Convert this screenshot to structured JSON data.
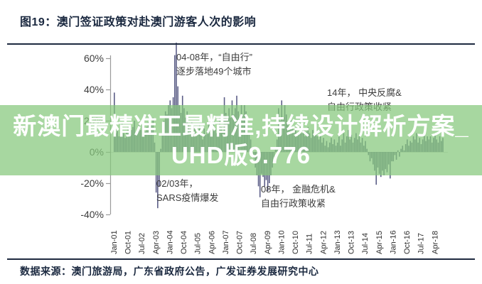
{
  "figure": {
    "title": "图19：澳门签证政策对赴澳门游客人次的影响",
    "source": "数据来源：澳门旅游局，广东省政府公告，广发证券发展研究中心"
  },
  "watermark": {
    "line1": "新澳门最精准正最精准,持续设计解析方案_",
    "line2": "UHD版9.776",
    "band_color": "rgba(133,200,123,0.72)",
    "text_color": "#ffffff"
  },
  "chart_data": {
    "type": "bar",
    "title": "澳门签证政策对赴澳门游客人次的影响",
    "xlabel": "",
    "ylabel": "",
    "unit": "%",
    "grid": false,
    "legend": "none",
    "bar_color": "#5c5e87",
    "axis_color": "#9a9a9a",
    "ylim": [
      -45,
      75
    ],
    "y_tick_values": [
      60,
      40,
      20,
      0,
      -20,
      -40
    ],
    "y_tick_labels": [
      "60%",
      "40%",
      "20%",
      "0%",
      "-20%",
      "-40%"
    ],
    "x_start_month": "Jan-01",
    "x_months_per_tick": 9,
    "x_tick_labels": [
      "Jan-01",
      "Oct-01",
      "Jul-02",
      "Apr-03",
      "Jan-04",
      "Oct-04",
      "Jul-05",
      "Apr-06",
      "Jan-07",
      "Oct-07",
      "Jul-08",
      "Apr-09",
      "Jan-10",
      "Oct-10",
      "Jul-11",
      "Apr-12",
      "Jan-13",
      "Oct-13",
      "Jul-14",
      "Apr-15",
      "Jan-16",
      "Oct-16",
      "Jul-17",
      "Apr-18"
    ],
    "values": [
      38,
      12,
      15,
      10,
      14,
      18,
      12,
      9,
      13,
      16,
      11,
      14,
      16,
      20,
      12,
      15,
      18,
      14,
      17,
      21,
      13,
      16,
      19,
      15,
      18,
      22,
      6,
      -26,
      -36,
      -22,
      2,
      12,
      20,
      26,
      24,
      30,
      33,
      28,
      35,
      62,
      70,
      42,
      30,
      25,
      36,
      28,
      22,
      26,
      18,
      14,
      20,
      12,
      16,
      10,
      14,
      18,
      12,
      8,
      15,
      11,
      14,
      18,
      12,
      16,
      20,
      15,
      12,
      17,
      22,
      16,
      13,
      35,
      25,
      20,
      28,
      22,
      33,
      24,
      28,
      36,
      26,
      22,
      30,
      24,
      30,
      26,
      18,
      12,
      8,
      2,
      -4,
      -10,
      -15,
      -22,
      -29,
      -14,
      -16,
      -22,
      -18,
      -25,
      -20,
      -15,
      -10,
      -5,
      2,
      8,
      28,
      20,
      33,
      22,
      30,
      24,
      18,
      14,
      20,
      16,
      12,
      15,
      10,
      13,
      16,
      12,
      14,
      10,
      13,
      16,
      12,
      9,
      14,
      11,
      13,
      10,
      8,
      12,
      6,
      9,
      4,
      7,
      3,
      6,
      9,
      5,
      8,
      4,
      6,
      10,
      4,
      8,
      12,
      6,
      10,
      14,
      8,
      11,
      6,
      9,
      12,
      8,
      10,
      6,
      9,
      4,
      7,
      2,
      -2,
      -6,
      -4,
      -8,
      -12,
      -21,
      -10,
      -14,
      -16,
      -12,
      -15,
      -11,
      -13,
      -8,
      -17,
      -6,
      -6,
      -2,
      -5,
      1,
      -3,
      2,
      4,
      1,
      5,
      8,
      4,
      7,
      6,
      10,
      8,
      12,
      6,
      9,
      5,
      8,
      11,
      7,
      10,
      8,
      10,
      6,
      9,
      12,
      8,
      6,
      10,
      7,
      9
    ],
    "annotations": [
      {
        "line1": "04-08年，“自由行”",
        "line2": "逐步落地49个城市"
      },
      {
        "line1": "14年， 中央反腐&",
        "line2": "自由行政策收紧"
      },
      {
        "line1": "02/03年，",
        "line2": "SARS疫情爆发"
      },
      {
        "line1": "08年， 金融危机&",
        "line2": "自由行政策收紧"
      }
    ]
  }
}
